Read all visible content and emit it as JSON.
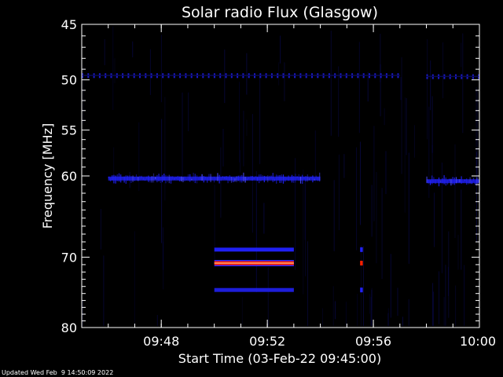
{
  "chart_data": {
    "type": "heatmap",
    "title": "Solar radio Flux (Glasgow)",
    "xlabel": "Start Time (03-Feb-22 09:45:00)",
    "ylabel": "Frequency [MHz]",
    "x_unit": "minutes",
    "xlim": [
      "09:45",
      "10:00"
    ],
    "ylim": [
      45,
      80
    ],
    "y_scale": "log",
    "x_ticks": [
      "09:48",
      "09:52",
      "09:56",
      "10:00"
    ],
    "y_ticks": [
      45,
      50,
      55,
      60,
      70,
      80
    ],
    "colors": {
      "background": "#000000",
      "low": "#0a0a55",
      "mid": "#2222ff",
      "high": "#ff2000",
      "peak": "#ffb080",
      "axis": "#ffffff"
    },
    "features": [
      {
        "name": "comb-50",
        "kind": "dashed",
        "t_start": "09:45",
        "t_end": "09:57",
        "freq": 49.6,
        "intensity": 0.6
      },
      {
        "name": "comb-50-right",
        "kind": "dashed",
        "t_start": "09:58",
        "t_end": "10:00",
        "freq": 49.7,
        "intensity": 0.6
      },
      {
        "name": "band-60",
        "kind": "noisy",
        "t_start": "09:46",
        "t_end": "09:54",
        "freq": 60.3,
        "intensity": 0.7
      },
      {
        "name": "band-60-right",
        "kind": "noisy",
        "t_start": "09:58",
        "t_end": "10:00",
        "freq": 60.6,
        "intensity": 0.6
      },
      {
        "name": "line-69",
        "kind": "solid",
        "t_start": "09:50",
        "t_end": "09:53",
        "freq": 69.0,
        "intensity": 0.8
      },
      {
        "name": "line-71",
        "kind": "solid",
        "t_start": "09:50",
        "t_end": "09:53",
        "freq": 70.8,
        "intensity": 1.0
      },
      {
        "name": "line-74",
        "kind": "solid",
        "t_start": "09:50",
        "t_end": "09:53",
        "freq": 74.5,
        "intensity": 0.7
      },
      {
        "name": "spike-69",
        "kind": "spot",
        "t_start": "09:55.5",
        "t_end": "09:55.6",
        "freq": 69.0,
        "intensity": 0.8
      },
      {
        "name": "spike-71",
        "kind": "spot",
        "t_start": "09:55.5",
        "t_end": "09:55.6",
        "freq": 70.8,
        "intensity": 1.0
      },
      {
        "name": "spike-74",
        "kind": "spot",
        "t_start": "09:55.5",
        "t_end": "09:55.6",
        "freq": 74.5,
        "intensity": 0.7
      }
    ]
  },
  "footer": "Updated Wed Feb  9 14:50:09 2022"
}
